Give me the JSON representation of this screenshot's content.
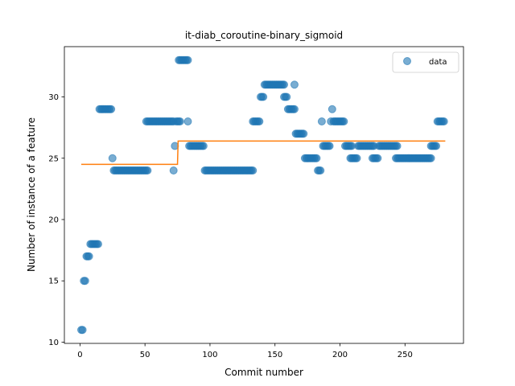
{
  "chart_data": {
    "type": "scatter",
    "title": "it-diab_coroutine-binary_sigmoid",
    "xlabel": "Commit number",
    "ylabel": "Number of instance of a feature",
    "xlim": [
      -12,
      295
    ],
    "ylim": [
      9.9,
      34.1
    ],
    "xticks": [
      0,
      50,
      100,
      150,
      200,
      250
    ],
    "yticks": [
      10,
      15,
      20,
      25,
      30
    ],
    "grid": false,
    "legend_position": "upper right",
    "colors": {
      "data": "#1f77b4",
      "fit": "#ff7f0e"
    },
    "series": [
      {
        "name": "data",
        "kind": "scatter",
        "runs": [
          [
            1,
            2,
            11
          ],
          [
            3,
            4,
            15
          ],
          [
            5,
            7,
            17
          ],
          [
            8,
            10,
            18
          ],
          [
            11,
            14,
            18
          ],
          [
            15,
            24,
            29
          ],
          [
            25,
            25,
            25
          ],
          [
            26,
            52,
            24
          ],
          [
            51,
            72,
            28
          ],
          [
            72,
            72,
            24
          ],
          [
            73,
            73,
            26
          ],
          [
            74,
            77,
            28
          ],
          [
            76,
            83,
            33
          ],
          [
            83,
            83,
            28
          ],
          [
            84,
            95,
            26
          ],
          [
            96,
            133,
            24
          ],
          [
            133,
            138,
            28
          ],
          [
            139,
            141,
            30
          ],
          [
            142,
            157,
            31
          ],
          [
            157,
            159,
            30
          ],
          [
            160,
            165,
            29
          ],
          [
            165,
            165,
            31
          ],
          [
            166,
            172,
            27
          ],
          [
            173,
            182,
            25
          ],
          [
            183,
            185,
            24
          ],
          [
            186,
            186,
            28
          ],
          [
            187,
            192,
            26
          ],
          [
            193,
            193,
            28
          ],
          [
            194,
            194,
            29
          ],
          [
            195,
            203,
            28
          ],
          [
            204,
            209,
            26
          ],
          [
            208,
            213,
            25
          ],
          [
            214,
            226,
            26
          ],
          [
            225,
            229,
            25
          ],
          [
            230,
            244,
            26
          ],
          [
            243,
            270,
            25
          ],
          [
            270,
            274,
            26
          ],
          [
            275,
            280,
            28
          ]
        ]
      },
      {
        "name": "",
        "kind": "step",
        "points": [
          [
            1,
            24.5
          ],
          [
            75,
            24.5
          ],
          [
            75.5,
            26.4
          ],
          [
            281,
            26.4
          ]
        ]
      }
    ]
  }
}
